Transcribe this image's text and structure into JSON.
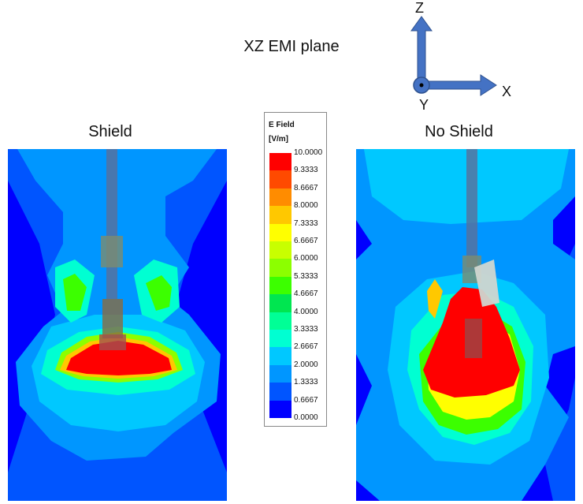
{
  "title": "XZ EMI plane",
  "panels": [
    {
      "label": "Shield"
    },
    {
      "label": "No Shield"
    }
  ],
  "legend": {
    "title_line1": "E Field",
    "title_line2": "[V/m]",
    "ticks": [
      "10.0000",
      "9.3333",
      "8.6667",
      "8.0000",
      "7.3333",
      "6.6667",
      "6.0000",
      "5.3333",
      "4.6667",
      "4.0000",
      "3.3333",
      "2.6667",
      "2.0000",
      "1.3333",
      "0.6667",
      "0.0000"
    ],
    "colors": [
      "#ff0000",
      "#ff4a00",
      "#ff8c00",
      "#ffc800",
      "#ffff00",
      "#c8ff00",
      "#8cff00",
      "#3cff00",
      "#00e650",
      "#00ff96",
      "#00ffd2",
      "#00c8ff",
      "#0096ff",
      "#0055ff",
      "#0000ff"
    ]
  },
  "axes": {
    "z": "Z",
    "x": "X",
    "y": "Y",
    "color": "#4472c4"
  }
}
